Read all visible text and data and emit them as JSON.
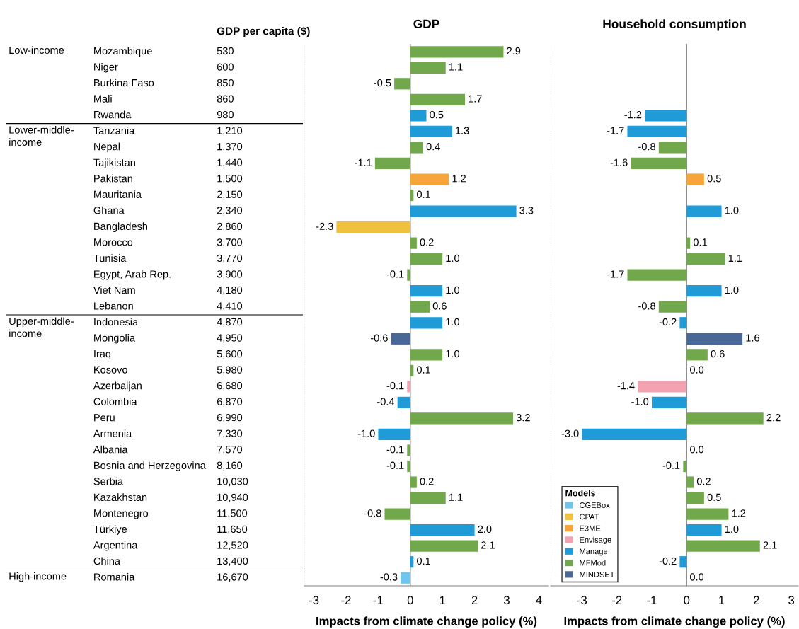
{
  "chart_data": [
    {
      "type": "other",
      "title": "GDP per capita ($)",
      "categories": [
        "Mozambique",
        "Niger",
        "Burkina Faso",
        "Mali",
        "Rwanda",
        "Tanzania",
        "Nepal",
        "Tajikistan",
        "Pakistan",
        "Mauritania",
        "Ghana",
        "Bangladesh",
        "Morocco",
        "Tunisia",
        "Egypt, Arab Rep.",
        "Viet Nam",
        "Lebanon",
        "Indonesia",
        "Mongolia",
        "Iraq",
        "Kosovo",
        "Azerbaijan",
        "Colombia",
        "Peru",
        "Armenia",
        "Albania",
        "Bosnia and Herzegovina",
        "Serbia",
        "Kazakhstan",
        "Montenegro",
        "Türkiye",
        "Argentina",
        "China",
        "Romania"
      ],
      "value_labels": [
        "530",
        "600",
        "850",
        "860",
        "980",
        "1,210",
        "1,370",
        "1,440",
        "1,500",
        "2,150",
        "2,340",
        "2,860",
        "3,700",
        "3,770",
        "3,900",
        "4,180",
        "4,410",
        "4,870",
        "4,950",
        "5,600",
        "5,980",
        "6,680",
        "6,870",
        "6,990",
        "7,330",
        "7,570",
        "8,160",
        "10,030",
        "10,940",
        "11,500",
        "11,650",
        "12,520",
        "13,400",
        "16,670"
      ],
      "annotations": [
        {
          "text": "Low-income",
          "y": "Mozambique"
        },
        {
          "text": "Lower-middle-income",
          "y": "Tanzania"
        },
        {
          "text": "Upper-middle-income",
          "y": "Indonesia"
        },
        {
          "text": "High-income",
          "y": "Romania"
        }
      ]
    },
    {
      "type": "bar",
      "orientation": "horizontal",
      "title": "GDP",
      "xlabel": "Impacts from climate change policy (%)",
      "categories": [
        null,
        null,
        null,
        null,
        null,
        null,
        null,
        null,
        null,
        null,
        null,
        null,
        null,
        null,
        null,
        null,
        null,
        null,
        null,
        null,
        null,
        null,
        null,
        null,
        null,
        null,
        null,
        null,
        null,
        null,
        null,
        null,
        null,
        null
      ],
      "tick_labels": "x",
      "xlim": [
        -3.3,
        4.3
      ],
      "xticks": [
        -3,
        -2,
        -1,
        0,
        1,
        2,
        3,
        4
      ],
      "ref_lines": [
        {
          "axis": "x",
          "value": 0,
          "color": "#808080"
        }
      ],
      "series": [
        {
          "color": "#6ec6ef",
          "values": [
            null,
            null,
            null,
            null,
            null,
            null,
            null,
            null,
            null,
            null,
            null,
            null,
            null,
            null,
            null,
            null,
            null,
            null,
            null,
            null,
            null,
            null,
            null,
            null,
            null,
            null,
            null,
            null,
            null,
            null,
            null,
            null,
            null,
            -0.3
          ],
          "value_labels": [
            null,
            null,
            null,
            null,
            null,
            null,
            null,
            null,
            null,
            null,
            null,
            null,
            null,
            null,
            null,
            null,
            null,
            null,
            null,
            null,
            null,
            null,
            null,
            null,
            null,
            null,
            null,
            null,
            null,
            null,
            null,
            null,
            null,
            "-0.3"
          ]
        },
        {
          "color": "#efc13f",
          "values": [
            null,
            null,
            null,
            null,
            null,
            null,
            null,
            null,
            null,
            null,
            null,
            -2.3,
            null,
            null,
            null,
            null,
            null,
            null,
            null,
            null,
            null,
            null,
            null,
            null,
            null,
            null,
            null,
            null,
            null,
            null,
            null,
            null,
            null,
            null
          ],
          "value_labels": [
            null,
            null,
            null,
            null,
            null,
            null,
            null,
            null,
            null,
            null,
            null,
            "-2.3",
            null,
            null,
            null,
            null,
            null,
            null,
            null,
            null,
            null,
            null,
            null,
            null,
            null,
            null,
            null,
            null,
            null,
            null,
            null,
            null,
            null,
            null
          ]
        },
        {
          "color": "#f6a53a",
          "values": [
            null,
            null,
            null,
            null,
            null,
            null,
            null,
            null,
            1.2,
            null,
            null,
            null,
            null,
            null,
            null,
            null,
            null,
            null,
            null,
            null,
            null,
            null,
            null,
            null,
            null,
            null,
            null,
            null,
            null,
            null,
            null,
            null,
            null,
            null
          ],
          "value_labels": [
            null,
            null,
            null,
            null,
            null,
            null,
            null,
            null,
            "1.2",
            null,
            null,
            null,
            null,
            null,
            null,
            null,
            null,
            null,
            null,
            null,
            null,
            null,
            null,
            null,
            null,
            null,
            null,
            null,
            null,
            null,
            null,
            null,
            null,
            null
          ]
        },
        {
          "color": "#f3a2b1",
          "values": [
            null,
            null,
            null,
            null,
            null,
            null,
            null,
            null,
            null,
            null,
            null,
            null,
            null,
            null,
            null,
            null,
            null,
            null,
            null,
            null,
            null,
            -0.1,
            null,
            null,
            null,
            null,
            null,
            null,
            null,
            null,
            null,
            null,
            null,
            null
          ],
          "value_labels": [
            null,
            null,
            null,
            null,
            null,
            null,
            null,
            null,
            null,
            null,
            null,
            null,
            null,
            null,
            null,
            null,
            null,
            null,
            null,
            null,
            null,
            "-0.1",
            null,
            null,
            null,
            null,
            null,
            null,
            null,
            null,
            null,
            null,
            null,
            null
          ]
        },
        {
          "color": "#1f9bd7",
          "values": [
            null,
            null,
            null,
            null,
            0.5,
            1.3,
            null,
            null,
            null,
            null,
            3.3,
            null,
            null,
            null,
            null,
            1.0,
            null,
            1.0,
            null,
            null,
            null,
            null,
            -0.4,
            null,
            -1.0,
            null,
            null,
            null,
            null,
            null,
            2.0,
            null,
            0.1,
            null
          ],
          "value_labels": [
            null,
            null,
            null,
            null,
            "0.5",
            "1.3",
            null,
            null,
            null,
            null,
            "3.3",
            null,
            null,
            null,
            null,
            "1.0",
            null,
            "1.0",
            null,
            null,
            null,
            null,
            "-0.4",
            null,
            "-1.0",
            null,
            null,
            null,
            null,
            null,
            "2.0",
            null,
            "0.1",
            null
          ]
        },
        {
          "color": "#70a84b",
          "values": [
            2.9,
            1.1,
            -0.5,
            1.7,
            null,
            null,
            0.4,
            -1.1,
            null,
            0.1,
            null,
            null,
            0.2,
            1.0,
            -0.1,
            null,
            0.6,
            null,
            null,
            1.0,
            0.1,
            null,
            null,
            3.2,
            null,
            -0.1,
            -0.1,
            0.2,
            1.1,
            -0.8,
            null,
            2.1,
            null,
            null
          ],
          "value_labels": [
            "2.9",
            "1.1",
            "-0.5",
            "1.7",
            null,
            null,
            "0.4",
            "-1.1",
            null,
            "0.1",
            null,
            null,
            "0.2",
            "1.0",
            "-0.1",
            null,
            "0.6",
            null,
            null,
            "1.0",
            "0.1",
            null,
            null,
            "3.2",
            null,
            "-0.1",
            "-0.1",
            "0.2",
            "1.1",
            "-0.8",
            null,
            "2.1",
            null,
            null
          ]
        },
        {
          "color": "#4a6895",
          "values": [
            null,
            null,
            null,
            null,
            null,
            null,
            null,
            null,
            null,
            null,
            null,
            null,
            null,
            null,
            null,
            null,
            null,
            null,
            -0.6,
            null,
            null,
            null,
            null,
            null,
            null,
            null,
            null,
            null,
            null,
            null,
            null,
            null,
            null,
            null
          ],
          "value_labels": [
            null,
            null,
            null,
            null,
            null,
            null,
            null,
            null,
            null,
            null,
            null,
            null,
            null,
            null,
            null,
            null,
            null,
            null,
            "-0.6",
            null,
            null,
            null,
            null,
            null,
            null,
            null,
            null,
            null,
            null,
            null,
            null,
            null,
            null,
            null
          ]
        }
      ]
    },
    {
      "type": "bar",
      "orientation": "horizontal",
      "title": "Household consumption",
      "xlabel": "Impacts from climate change policy (%)",
      "categories": [
        null,
        null,
        null,
        null,
        null,
        null,
        null,
        null,
        null,
        null,
        null,
        null,
        null,
        null,
        null,
        null,
        null,
        null,
        null,
        null,
        null,
        null,
        null,
        null,
        null,
        null,
        null,
        null,
        null,
        null,
        null,
        null,
        null,
        null
      ],
      "tick_labels": "x",
      "xlim": [
        -3.9,
        3.2
      ],
      "xticks": [
        -3,
        -2,
        -1,
        0,
        1,
        2,
        3
      ],
      "legend": "bottom left",
      "legend_title": "Models",
      "ref_lines": [
        {
          "axis": "x",
          "value": 0,
          "color": "#808080"
        }
      ],
      "series": [
        {
          "name": "CGEBox",
          "color": "#6ec6ef",
          "values": [
            null,
            null,
            null,
            null,
            null,
            null,
            null,
            null,
            null,
            null,
            null,
            null,
            null,
            null,
            null,
            null,
            null,
            null,
            null,
            null,
            null,
            null,
            null,
            null,
            null,
            null,
            null,
            null,
            null,
            null,
            null,
            null,
            null,
            0.0
          ],
          "value_labels": [
            null,
            null,
            null,
            null,
            null,
            null,
            null,
            null,
            null,
            null,
            null,
            null,
            null,
            null,
            null,
            null,
            null,
            null,
            null,
            null,
            null,
            null,
            null,
            null,
            null,
            null,
            null,
            null,
            null,
            null,
            null,
            null,
            null,
            "0.0"
          ]
        },
        {
          "name": "CPAT",
          "color": "#efc13f",
          "values": [
            null,
            null,
            null,
            null,
            null,
            null,
            null,
            null,
            null,
            null,
            null,
            null,
            null,
            null,
            null,
            null,
            null,
            null,
            null,
            null,
            null,
            null,
            null,
            null,
            null,
            null,
            null,
            null,
            null,
            null,
            null,
            null,
            null,
            null
          ]
        },
        {
          "name": "E3ME",
          "color": "#f6a53a",
          "values": [
            null,
            null,
            null,
            null,
            null,
            null,
            null,
            null,
            0.5,
            null,
            null,
            null,
            null,
            null,
            null,
            null,
            null,
            null,
            null,
            null,
            null,
            null,
            null,
            null,
            null,
            null,
            null,
            null,
            null,
            null,
            null,
            null,
            null,
            null
          ],
          "value_labels": [
            null,
            null,
            null,
            null,
            null,
            null,
            null,
            null,
            "0.5",
            null,
            null,
            null,
            null,
            null,
            null,
            null,
            null,
            null,
            null,
            null,
            null,
            null,
            null,
            null,
            null,
            null,
            null,
            null,
            null,
            null,
            null,
            null,
            null,
            null
          ]
        },
        {
          "name": "Envisage",
          "color": "#f3a2b1",
          "values": [
            null,
            null,
            null,
            null,
            null,
            null,
            null,
            null,
            null,
            null,
            null,
            null,
            null,
            null,
            null,
            null,
            null,
            null,
            null,
            null,
            null,
            -1.4,
            null,
            null,
            null,
            null,
            null,
            null,
            null,
            null,
            null,
            null,
            null,
            null
          ],
          "value_labels": [
            null,
            null,
            null,
            null,
            null,
            null,
            null,
            null,
            null,
            null,
            null,
            null,
            null,
            null,
            null,
            null,
            null,
            null,
            null,
            null,
            null,
            "-1.4",
            null,
            null,
            null,
            null,
            null,
            null,
            null,
            null,
            null,
            null,
            null,
            null
          ]
        },
        {
          "name": "Manage",
          "color": "#1f9bd7",
          "values": [
            null,
            null,
            null,
            null,
            -1.2,
            -1.7,
            null,
            null,
            null,
            null,
            1.0,
            null,
            null,
            null,
            null,
            1.0,
            null,
            -0.2,
            null,
            null,
            null,
            null,
            -1.0,
            null,
            -3.0,
            null,
            null,
            null,
            null,
            null,
            1.0,
            null,
            -0.2,
            null
          ],
          "value_labels": [
            null,
            null,
            null,
            null,
            "-1.2",
            "-1.7",
            null,
            null,
            null,
            null,
            "1.0",
            null,
            null,
            null,
            null,
            "1.0",
            null,
            "-0.2",
            null,
            null,
            null,
            null,
            "-1.0",
            null,
            "-3.0",
            null,
            null,
            null,
            null,
            null,
            "1.0",
            null,
            "-0.2",
            null
          ]
        },
        {
          "name": "MFMod",
          "color": "#70a84b",
          "values": [
            null,
            null,
            null,
            null,
            null,
            null,
            -0.8,
            -1.6,
            null,
            null,
            null,
            null,
            0.1,
            1.1,
            -1.7,
            null,
            -0.8,
            null,
            null,
            0.6,
            0.0,
            null,
            null,
            2.2,
            null,
            0.0,
            -0.1,
            0.2,
            0.5,
            1.2,
            null,
            2.1,
            null,
            null
          ],
          "value_labels": [
            null,
            null,
            null,
            null,
            null,
            null,
            "-0.8",
            "-1.6",
            null,
            null,
            null,
            null,
            "0.1",
            "1.1",
            "-1.7",
            null,
            "-0.8",
            null,
            null,
            "0.6",
            "0.0",
            null,
            null,
            "2.2",
            null,
            "0.0",
            "-0.1",
            "0.2",
            "0.5",
            "1.2",
            null,
            "2.1",
            null,
            null
          ]
        },
        {
          "name": "MINDSET",
          "color": "#4a6895",
          "values": [
            null,
            null,
            null,
            null,
            null,
            null,
            null,
            null,
            null,
            null,
            null,
            null,
            null,
            null,
            null,
            null,
            null,
            null,
            1.6,
            null,
            null,
            null,
            null,
            null,
            null,
            null,
            null,
            null,
            null,
            null,
            null,
            null,
            null,
            null
          ],
          "value_labels": [
            null,
            null,
            null,
            null,
            null,
            null,
            null,
            null,
            null,
            null,
            null,
            null,
            null,
            null,
            null,
            null,
            null,
            null,
            "1.6",
            null,
            null,
            null,
            null,
            null,
            null,
            null,
            null,
            null,
            null,
            null,
            null,
            null,
            null,
            null
          ]
        }
      ]
    }
  ]
}
